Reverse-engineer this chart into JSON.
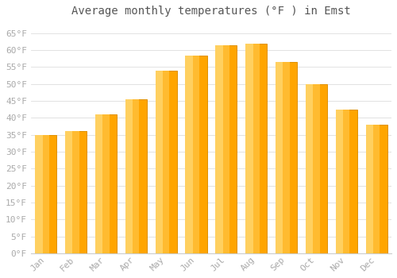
{
  "title": "Average monthly temperatures (°F ) in Emst",
  "months": [
    "Jan",
    "Feb",
    "Mar",
    "Apr",
    "May",
    "Jun",
    "Jul",
    "Aug",
    "Sep",
    "Oct",
    "Nov",
    "Dec"
  ],
  "values": [
    35,
    36,
    41,
    45.5,
    54,
    58.5,
    61.5,
    62,
    56.5,
    50,
    42.5,
    38
  ],
  "bar_color_main": "#FFA500",
  "bar_color_light": "#FFD060",
  "bar_color_edge": "#E09000",
  "background_color": "#FFFFFF",
  "grid_color": "#DDDDDD",
  "ylim": [
    0,
    68
  ],
  "yticks": [
    0,
    5,
    10,
    15,
    20,
    25,
    30,
    35,
    40,
    45,
    50,
    55,
    60,
    65
  ],
  "ytick_labels": [
    "0°F",
    "5°F",
    "10°F",
    "15°F",
    "20°F",
    "25°F",
    "30°F",
    "35°F",
    "40°F",
    "45°F",
    "50°F",
    "55°F",
    "60°F",
    "65°F"
  ],
  "title_fontsize": 10,
  "tick_fontsize": 8,
  "font_color": "#AAAAAA",
  "title_color": "#555555"
}
